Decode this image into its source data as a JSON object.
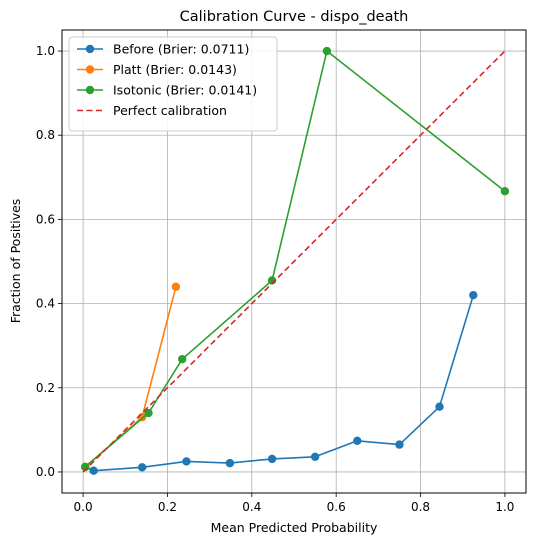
{
  "chart_data": {
    "type": "line",
    "title": "Calibration Curve - dispo_death",
    "xlabel": "Mean Predicted Probability",
    "ylabel": "Fraction of Positives",
    "xlim": [
      -0.05,
      1.05
    ],
    "ylim": [
      -0.05,
      1.05
    ],
    "xticks": [
      "0.0",
      "0.2",
      "0.4",
      "0.6",
      "0.8",
      "1.0"
    ],
    "yticks": [
      "0.0",
      "0.2",
      "0.4",
      "0.6",
      "0.8",
      "1.0"
    ],
    "grid": true,
    "legend_position": "top-left",
    "series": [
      {
        "name": "Before (Brier: 0.0711)",
        "color": "#1f77b4",
        "style": "solid",
        "marker": true,
        "x": [
          0.005,
          0.025,
          0.14,
          0.245,
          0.348,
          0.448,
          0.55,
          0.65,
          0.75,
          0.845,
          0.925
        ],
        "y": [
          0.012,
          0.003,
          0.011,
          0.025,
          0.021,
          0.031,
          0.036,
          0.074,
          0.065,
          0.155,
          0.42
        ]
      },
      {
        "name": "Platt (Brier: 0.0143)",
        "color": "#ff7f0e",
        "style": "solid",
        "marker": true,
        "x": [
          0.005,
          0.14,
          0.22
        ],
        "y": [
          0.012,
          0.13,
          0.44
        ]
      },
      {
        "name": "Isotonic (Brier: 0.0141)",
        "color": "#2ca02c",
        "style": "solid",
        "marker": true,
        "x": [
          0.005,
          0.155,
          0.235,
          0.448,
          0.578,
          1.0
        ],
        "y": [
          0.012,
          0.14,
          0.268,
          0.455,
          1.0,
          0.667
        ]
      },
      {
        "name": "Perfect calibration",
        "color": "#d62728",
        "style": "dashed",
        "marker": false,
        "x": [
          0.0,
          1.0
        ],
        "y": [
          0.0,
          1.0
        ]
      }
    ]
  }
}
